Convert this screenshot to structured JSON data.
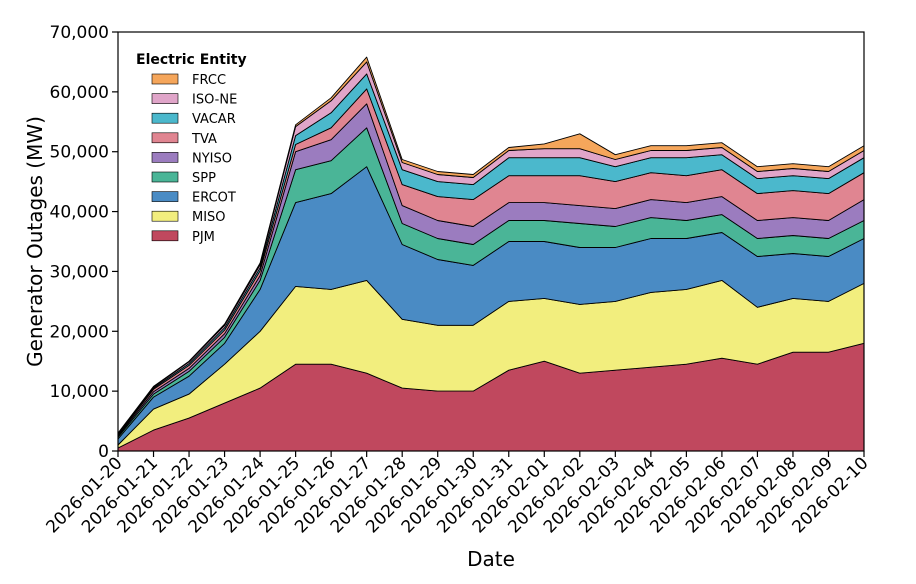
{
  "chart_data": {
    "type": "area",
    "stacked": true,
    "xlabel": "Date",
    "ylabel": "Generator Outages (MW)",
    "ylim": [
      0,
      70000
    ],
    "yticks": [
      0,
      10000,
      20000,
      30000,
      40000,
      50000,
      60000,
      70000
    ],
    "ytick_labels": [
      "0",
      "10,000",
      "20,000",
      "30,000",
      "40,000",
      "50,000",
      "60,000",
      "70,000"
    ],
    "x": [
      "2026-01-20",
      "2026-01-21",
      "2026-01-22",
      "2026-01-23",
      "2026-01-24",
      "2026-01-25",
      "2026-01-26",
      "2026-01-27",
      "2026-01-28",
      "2026-01-29",
      "2026-01-30",
      "2026-01-31",
      "2026-02-01",
      "2026-02-02",
      "2026-02-03",
      "2026-02-04",
      "2026-02-05",
      "2026-02-06",
      "2026-02-07",
      "2026-02-08",
      "2026-02-09",
      "2026-02-10"
    ],
    "xtick_labels": [
      "2026-01-20",
      "2026-01-21",
      "2026-01-22",
      "2026-01-23",
      "2026-01-24",
      "2026-01-25",
      "2026-01-26",
      "2026-01-27",
      "2026-01-28",
      "2026-01-29",
      "2026-01-30",
      "2026-01-31",
      "2026-02-01",
      "2026-02-02",
      "2026-02-03",
      "2026-02-04",
      "2026-02-05",
      "2026-02-06",
      "2026-02-07",
      "2026-02-08",
      "2026-02-09",
      "2026-02-10"
    ],
    "legend": {
      "title": "Electric Entity",
      "placement": "top-left"
    },
    "grid": false,
    "series": [
      {
        "name": "PJM",
        "color": "#c0485e",
        "values": [
          500,
          3500,
          5500,
          8000,
          10500,
          14500,
          14500,
          13000,
          10500,
          10000,
          10000,
          13500,
          15000,
          13000,
          13500,
          14000,
          14500,
          15500,
          14500,
          16500,
          16500,
          18000
        ]
      },
      {
        "name": "MISO",
        "color": "#f2ee7e",
        "values": [
          500,
          3500,
          4000,
          6500,
          9500,
          13000,
          12500,
          15500,
          11500,
          11000,
          11000,
          11500,
          10500,
          11500,
          11500,
          12500,
          12500,
          13000,
          9500,
          9000,
          8500,
          10000
        ]
      },
      {
        "name": "ERCOT",
        "color": "#4a8bc4",
        "values": [
          1000,
          2000,
          3000,
          3500,
          7000,
          14000,
          16000,
          19000,
          12500,
          11000,
          10000,
          10000,
          9500,
          9500,
          9000,
          9000,
          8500,
          8000,
          8500,
          7500,
          7500,
          7500
        ]
      },
      {
        "name": "SPP",
        "color": "#4ab597",
        "values": [
          300,
          500,
          800,
          1000,
          1500,
          5500,
          5500,
          6500,
          3500,
          3500,
          3500,
          3500,
          3500,
          4000,
          3500,
          3500,
          3000,
          3000,
          3000,
          3000,
          3000,
          3000
        ]
      },
      {
        "name": "NYISO",
        "color": "#9b7cbf",
        "values": [
          200,
          400,
          500,
          600,
          800,
          3000,
          3500,
          4000,
          3000,
          3000,
          3000,
          3000,
          3000,
          3000,
          3000,
          3000,
          3000,
          3000,
          3000,
          3000,
          3000,
          3500
        ]
      },
      {
        "name": "TVA",
        "color": "#e08591",
        "values": [
          200,
          400,
          500,
          600,
          800,
          1200,
          2000,
          2500,
          3500,
          4000,
          4500,
          4500,
          4500,
          5000,
          4500,
          4500,
          4500,
          4500,
          4500,
          4500,
          4500,
          4500
        ]
      },
      {
        "name": "VACAR",
        "color": "#4bb8cc",
        "values": [
          100,
          200,
          300,
          400,
          500,
          1500,
          2500,
          2500,
          2500,
          2500,
          2500,
          3000,
          3000,
          3000,
          2500,
          2500,
          3000,
          2500,
          2500,
          2500,
          2500,
          2500
        ]
      },
      {
        "name": "ISO-NE",
        "color": "#e0a5c9",
        "values": [
          100,
          200,
          300,
          400,
          500,
          1500,
          2000,
          2000,
          1200,
          1200,
          1200,
          1200,
          1500,
          1500,
          1200,
          1200,
          1200,
          1200,
          1200,
          1200,
          1200,
          1200
        ]
      },
      {
        "name": "FRCC",
        "color": "#f5a65b",
        "values": [
          100,
          100,
          100,
          200,
          300,
          300,
          500,
          800,
          500,
          500,
          500,
          500,
          800,
          2500,
          800,
          800,
          800,
          800,
          800,
          800,
          800,
          800
        ]
      }
    ]
  }
}
